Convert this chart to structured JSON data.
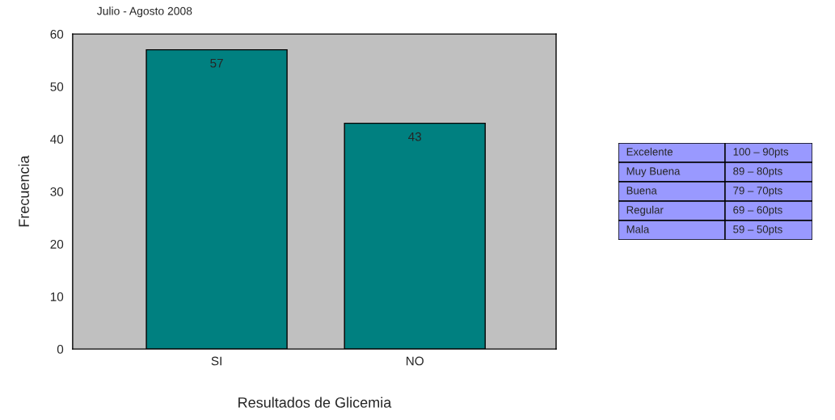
{
  "chart_data": [
    {
      "type": "bar",
      "title": "Julio - Agosto 2008",
      "xlabel": "Resultados de Glicemia",
      "ylabel": "Frecuencia",
      "categories": [
        "SI",
        "NO"
      ],
      "values": [
        57,
        43
      ],
      "color": "#008080",
      "data_labels": true,
      "ylim": [
        0,
        60
      ],
      "yticks": [
        0,
        10,
        20,
        30,
        40,
        50,
        60
      ],
      "grid": false
    },
    {
      "type": "other",
      "annotations": [
        "Excelente",
        "100 – 90pts",
        "Muy Buena",
        "89 – 80pts",
        "Buena",
        "79 – 70pts",
        "Regular",
        "69 – 60pts",
        "Mala",
        "59 – 50pts"
      ]
    }
  ]
}
